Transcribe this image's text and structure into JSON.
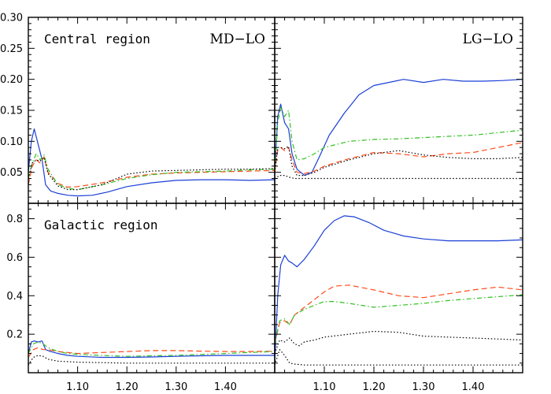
{
  "chart_data": [
    {
      "type": "line",
      "panel": "top-left",
      "label": "Central region",
      "tag": "MD−LO",
      "xlim": [
        1.0,
        1.5
      ],
      "ylim": [
        0.0,
        0.3
      ],
      "yticks": [
        0.05,
        0.1,
        0.15,
        0.2,
        0.25,
        0.3
      ],
      "ytick_labels": [
        "0.05",
        "0.10",
        "0.15",
        "0.20",
        "0.25",
        "0.30"
      ],
      "xticks": [
        1.1,
        1.2,
        1.3,
        1.4
      ],
      "series": [
        {
          "style": "solid",
          "color": "#1a3fd6",
          "x": [
            1.0,
            1.006,
            1.012,
            1.02,
            1.028,
            1.035,
            1.045,
            1.06,
            1.08,
            1.1,
            1.13,
            1.16,
            1.2,
            1.25,
            1.3,
            1.35,
            1.4,
            1.45,
            1.5
          ],
          "y": [
            0.05,
            0.1,
            0.12,
            0.095,
            0.07,
            0.03,
            0.02,
            0.016,
            0.013,
            0.012,
            0.013,
            0.018,
            0.027,
            0.033,
            0.037,
            0.038,
            0.038,
            0.037,
            0.038
          ]
        },
        {
          "style": "dashed",
          "color": "#ff4a1a",
          "x": [
            1.0,
            1.008,
            1.016,
            1.024,
            1.032,
            1.04,
            1.06,
            1.08,
            1.1,
            1.15,
            1.2,
            1.25,
            1.3,
            1.35,
            1.4,
            1.45,
            1.5
          ],
          "y": [
            0.03,
            0.06,
            0.07,
            0.065,
            0.075,
            0.05,
            0.032,
            0.026,
            0.027,
            0.033,
            0.042,
            0.047,
            0.049,
            0.05,
            0.051,
            0.052,
            0.053
          ]
        },
        {
          "style": "dash-dot",
          "color": "#2fc11f",
          "x": [
            1.0,
            1.008,
            1.016,
            1.024,
            1.032,
            1.04,
            1.06,
            1.08,
            1.1,
            1.15,
            1.2,
            1.25,
            1.3,
            1.35,
            1.4,
            1.45,
            1.5
          ],
          "y": [
            0.04,
            0.065,
            0.08,
            0.07,
            0.078,
            0.055,
            0.03,
            0.024,
            0.022,
            0.03,
            0.04,
            0.046,
            0.05,
            0.051,
            0.052,
            0.054,
            0.055
          ]
        },
        {
          "style": "dotted",
          "color": "#000000",
          "x": [
            1.0,
            1.008,
            1.016,
            1.024,
            1.032,
            1.04,
            1.06,
            1.08,
            1.1,
            1.15,
            1.2,
            1.25,
            1.3,
            1.35,
            1.4,
            1.45,
            1.5
          ],
          "y": [
            0.04,
            0.065,
            0.07,
            0.068,
            0.074,
            0.048,
            0.028,
            0.022,
            0.022,
            0.03,
            0.047,
            0.052,
            0.053,
            0.054,
            0.055,
            0.055,
            0.056
          ]
        }
      ]
    },
    {
      "type": "line",
      "panel": "top-right",
      "label": "",
      "tag": "LG−LO",
      "xlim": [
        1.0,
        1.5
      ],
      "ylim": [
        0.0,
        0.3
      ],
      "xticks": [
        1.1,
        1.2,
        1.3,
        1.4
      ],
      "series": [
        {
          "style": "solid",
          "color": "#1a3fd6",
          "x": [
            1.0,
            1.006,
            1.012,
            1.02,
            1.028,
            1.035,
            1.045,
            1.06,
            1.075,
            1.09,
            1.11,
            1.14,
            1.17,
            1.2,
            1.23,
            1.26,
            1.3,
            1.34,
            1.38,
            1.42,
            1.46,
            1.5
          ],
          "y": [
            0.05,
            0.14,
            0.16,
            0.13,
            0.12,
            0.08,
            0.055,
            0.045,
            0.05,
            0.075,
            0.11,
            0.145,
            0.175,
            0.19,
            0.195,
            0.2,
            0.195,
            0.2,
            0.197,
            0.197,
            0.198,
            0.2
          ]
        },
        {
          "style": "dash-dot",
          "color": "#2fc11f",
          "x": [
            1.0,
            1.006,
            1.012,
            1.02,
            1.028,
            1.035,
            1.045,
            1.06,
            1.08,
            1.1,
            1.15,
            1.2,
            1.25,
            1.3,
            1.35,
            1.4,
            1.45,
            1.5
          ],
          "y": [
            0.05,
            0.13,
            0.155,
            0.14,
            0.15,
            0.1,
            0.07,
            0.072,
            0.08,
            0.09,
            0.1,
            0.103,
            0.104,
            0.106,
            0.108,
            0.11,
            0.114,
            0.118
          ]
        },
        {
          "style": "dashed",
          "color": "#ff4a1a",
          "x": [
            1.0,
            1.006,
            1.012,
            1.02,
            1.028,
            1.035,
            1.045,
            1.06,
            1.08,
            1.1,
            1.15,
            1.2,
            1.25,
            1.3,
            1.35,
            1.4,
            1.45,
            1.5
          ],
          "y": [
            0.05,
            0.085,
            0.09,
            0.085,
            0.09,
            0.07,
            0.05,
            0.048,
            0.052,
            0.06,
            0.072,
            0.082,
            0.08,
            0.075,
            0.08,
            0.082,
            0.09,
            0.098
          ]
        },
        {
          "style": "dotted",
          "color": "#000000",
          "x": [
            1.0,
            1.006,
            1.012,
            1.02,
            1.028,
            1.035,
            1.045,
            1.06,
            1.08,
            1.1,
            1.15,
            1.2,
            1.25,
            1.3,
            1.35,
            1.4,
            1.45,
            1.5
          ],
          "y": [
            0.05,
            0.09,
            0.09,
            0.088,
            0.092,
            0.06,
            0.045,
            0.045,
            0.05,
            0.058,
            0.07,
            0.08,
            0.085,
            0.078,
            0.074,
            0.072,
            0.072,
            0.074
          ]
        },
        {
          "style": "dotted",
          "color": "#000000",
          "x": [
            1.0,
            1.01,
            1.02,
            1.03,
            1.04,
            1.06,
            1.1,
            1.2,
            1.3,
            1.4,
            1.5
          ],
          "y": [
            0.04,
            0.045,
            0.045,
            0.042,
            0.04,
            0.04,
            0.04,
            0.04,
            0.04,
            0.04,
            0.04
          ]
        }
      ]
    },
    {
      "type": "line",
      "panel": "bottom-left",
      "label": "Galactic region",
      "tag": "",
      "xlim": [
        1.0,
        1.5
      ],
      "ylim": [
        0.0,
        0.88
      ],
      "yticks": [
        0.2,
        0.4,
        0.6,
        0.8
      ],
      "ytick_labels": [
        "0.2",
        "0.4",
        "0.6",
        "0.8"
      ],
      "xticks": [
        1.1,
        1.2,
        1.3,
        1.4
      ],
      "xtick_labels": [
        "1.10",
        "1.20",
        "1.30",
        "1.40"
      ],
      "series": [
        {
          "style": "solid",
          "color": "#1a3fd6",
          "x": [
            1.0,
            1.006,
            1.012,
            1.02,
            1.028,
            1.035,
            1.045,
            1.06,
            1.08,
            1.1,
            1.15,
            1.2,
            1.25,
            1.3,
            1.35,
            1.4,
            1.45,
            1.5
          ],
          "y": [
            0.1,
            0.16,
            0.165,
            0.16,
            0.165,
            0.12,
            0.11,
            0.1,
            0.09,
            0.085,
            0.08,
            0.08,
            0.082,
            0.085,
            0.088,
            0.09,
            0.09,
            0.09
          ]
        },
        {
          "style": "dashed",
          "color": "#ff4a1a",
          "x": [
            1.0,
            1.01,
            1.02,
            1.03,
            1.04,
            1.06,
            1.08,
            1.1,
            1.15,
            1.2,
            1.25,
            1.3,
            1.35,
            1.4,
            1.45,
            1.5
          ],
          "y": [
            0.08,
            0.12,
            0.13,
            0.12,
            0.12,
            0.11,
            0.105,
            0.1,
            0.105,
            0.11,
            0.115,
            0.115,
            0.112,
            0.11,
            0.11,
            0.112
          ]
        },
        {
          "style": "dash-dot",
          "color": "#2fc11f",
          "x": [
            1.0,
            1.01,
            1.02,
            1.03,
            1.04,
            1.06,
            1.08,
            1.1,
            1.15,
            1.2,
            1.25,
            1.3,
            1.35,
            1.4,
            1.45,
            1.5
          ],
          "y": [
            0.1,
            0.15,
            0.16,
            0.15,
            0.13,
            0.11,
            0.1,
            0.095,
            0.09,
            0.085,
            0.088,
            0.09,
            0.095,
            0.1,
            0.105,
            0.11
          ]
        },
        {
          "style": "dotted",
          "color": "#000000",
          "x": [
            1.0,
            1.01,
            1.02,
            1.03,
            1.04,
            1.06,
            1.1,
            1.2,
            1.3,
            1.4,
            1.5
          ],
          "y": [
            0.04,
            0.08,
            0.09,
            0.085,
            0.07,
            0.06,
            0.055,
            0.05,
            0.05,
            0.05,
            0.05
          ]
        }
      ]
    },
    {
      "type": "line",
      "panel": "bottom-right",
      "label": "",
      "tag": "",
      "xlim": [
        1.0,
        1.5
      ],
      "ylim": [
        0.0,
        0.88
      ],
      "xticks": [
        1.1,
        1.2,
        1.3,
        1.4
      ],
      "xtick_labels": [
        "1.10",
        "1.20",
        "1.30",
        "1.40"
      ],
      "series": [
        {
          "style": "solid",
          "color": "#1a3fd6",
          "x": [
            1.0,
            1.006,
            1.012,
            1.02,
            1.028,
            1.035,
            1.045,
            1.06,
            1.08,
            1.1,
            1.12,
            1.14,
            1.16,
            1.19,
            1.22,
            1.26,
            1.3,
            1.35,
            1.4,
            1.45,
            1.5
          ],
          "y": [
            0.05,
            0.4,
            0.56,
            0.61,
            0.58,
            0.57,
            0.55,
            0.59,
            0.66,
            0.74,
            0.79,
            0.815,
            0.81,
            0.78,
            0.74,
            0.71,
            0.695,
            0.685,
            0.685,
            0.685,
            0.69
          ]
        },
        {
          "style": "dashed",
          "color": "#ff4a1a",
          "x": [
            1.0,
            1.01,
            1.02,
            1.03,
            1.04,
            1.06,
            1.08,
            1.1,
            1.12,
            1.15,
            1.2,
            1.25,
            1.3,
            1.35,
            1.4,
            1.45,
            1.5
          ],
          "y": [
            0.15,
            0.26,
            0.27,
            0.25,
            0.3,
            0.34,
            0.38,
            0.42,
            0.45,
            0.455,
            0.43,
            0.4,
            0.39,
            0.41,
            0.43,
            0.445,
            0.43
          ]
        },
        {
          "style": "dash-dot",
          "color": "#2fc11f",
          "x": [
            1.0,
            1.01,
            1.02,
            1.03,
            1.04,
            1.06,
            1.08,
            1.1,
            1.12,
            1.15,
            1.2,
            1.25,
            1.3,
            1.35,
            1.4,
            1.45,
            1.5
          ],
          "y": [
            0.15,
            0.27,
            0.28,
            0.25,
            0.3,
            0.33,
            0.35,
            0.37,
            0.37,
            0.36,
            0.34,
            0.35,
            0.36,
            0.375,
            0.385,
            0.395,
            0.405
          ]
        },
        {
          "style": "dotted",
          "color": "#000000",
          "x": [
            1.0,
            1.01,
            1.02,
            1.03,
            1.04,
            1.05,
            1.06,
            1.08,
            1.1,
            1.15,
            1.2,
            1.25,
            1.3,
            1.35,
            1.4,
            1.45,
            1.5
          ],
          "y": [
            0.1,
            0.17,
            0.16,
            0.18,
            0.15,
            0.14,
            0.16,
            0.17,
            0.185,
            0.2,
            0.215,
            0.21,
            0.19,
            0.185,
            0.18,
            0.175,
            0.17
          ]
        },
        {
          "style": "dotted",
          "color": "#000000",
          "x": [
            1.0,
            1.01,
            1.02,
            1.03,
            1.04,
            1.06,
            1.1,
            1.2,
            1.3,
            1.4,
            1.5
          ],
          "y": [
            0.04,
            0.12,
            0.09,
            0.05,
            0.045,
            0.04,
            0.04,
            0.04,
            0.04,
            0.04,
            0.04
          ]
        }
      ]
    }
  ]
}
